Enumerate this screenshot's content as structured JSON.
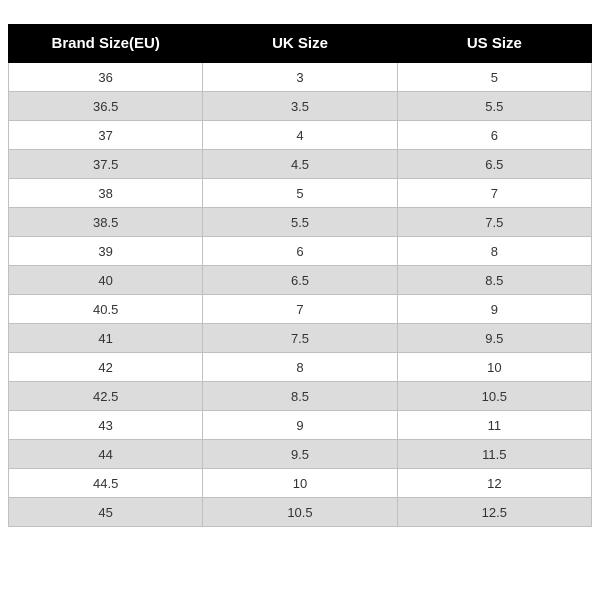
{
  "size_table": {
    "type": "table",
    "header_bg": "#000000",
    "header_fg": "#ffffff",
    "border_color": "#c0c0c0",
    "row_odd_bg": "#ffffff",
    "row_even_bg": "#dcdcdc",
    "cell_font_size": 13,
    "header_font_size": 15,
    "columns": [
      "Brand Size(EU)",
      "UK Size",
      "US Size"
    ],
    "rows": [
      [
        "36",
        "3",
        "5"
      ],
      [
        "36.5",
        "3.5",
        "5.5"
      ],
      [
        "37",
        "4",
        "6"
      ],
      [
        "37.5",
        "4.5",
        "6.5"
      ],
      [
        "38",
        "5",
        "7"
      ],
      [
        "38.5",
        "5.5",
        "7.5"
      ],
      [
        "39",
        "6",
        "8"
      ],
      [
        "40",
        "6.5",
        "8.5"
      ],
      [
        "40.5",
        "7",
        "9"
      ],
      [
        "41",
        "7.5",
        "9.5"
      ],
      [
        "42",
        "8",
        "10"
      ],
      [
        "42.5",
        "8.5",
        "10.5"
      ],
      [
        "43",
        "9",
        "11"
      ],
      [
        "44",
        "9.5",
        "11.5"
      ],
      [
        "44.5",
        "10",
        "12"
      ],
      [
        "45",
        "10.5",
        "12.5"
      ]
    ]
  }
}
